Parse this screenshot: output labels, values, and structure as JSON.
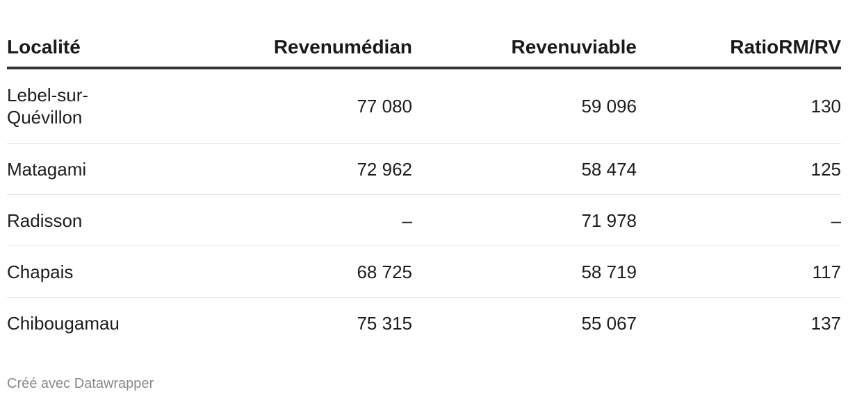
{
  "chart_data": {
    "type": "table",
    "columns": [
      "Localité",
      "Revenumédian",
      "Revenuviable",
      "RatioRM/RV"
    ],
    "rows": [
      [
        "Lebel-sur-Quévillon",
        "77 080",
        "59 096",
        "130"
      ],
      [
        "Matagami",
        "72 962",
        "58 474",
        "125"
      ],
      [
        "Radisson",
        "–",
        "71 978",
        "–"
      ],
      [
        "Chapais",
        "68 725",
        "58 719",
        "117"
      ],
      [
        "Chibougamau",
        "75 315",
        "55 067",
        "137"
      ]
    ]
  },
  "credit": "Créé avec Datawrapper"
}
